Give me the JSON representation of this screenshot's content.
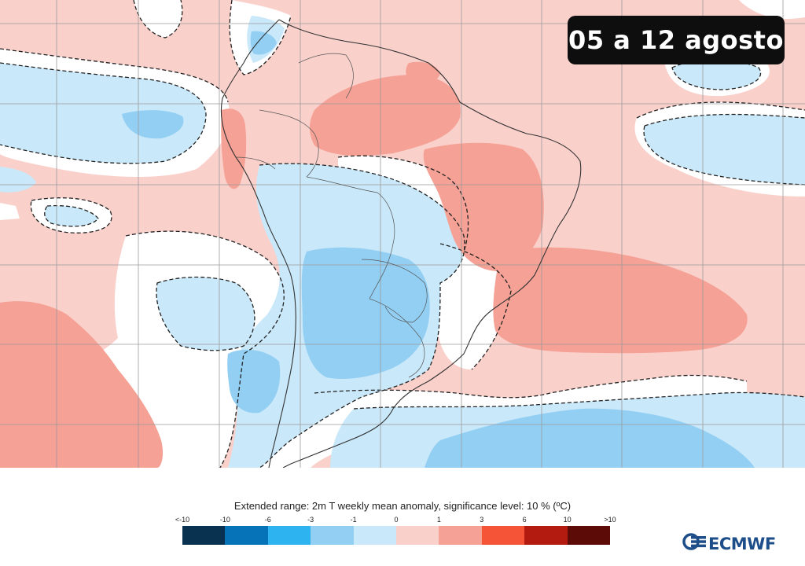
{
  "date_label": "05 a 12 agosto",
  "legend": {
    "title": "Extended range: 2m T weekly mean anomaly, significance level: 10 % (ºC)",
    "tick_labels": [
      "<-10",
      "-10",
      "-6",
      "-3",
      "-1",
      "0",
      "1",
      "3",
      "6",
      "10",
      ">10"
    ],
    "colors": [
      "#08324f",
      "#0672b8",
      "#2eb3f1",
      "#93cff3",
      "#c9e8f9",
      "#fad0cb",
      "#f5a195",
      "#f55436",
      "#b31a10",
      "#5c0b06"
    ]
  },
  "map_colors": {
    "ocean_base": "#fad0cb",
    "warm_strong": "#f5a195",
    "cool_light": "#c9e8f9",
    "cool_mid": "#93cff3",
    "neutral": "#ffffff",
    "grid": "#9a9a9a",
    "border": "#333333"
  },
  "logo": {
    "text": "ECMWF",
    "icon": "ecmwf-logo-icon"
  }
}
